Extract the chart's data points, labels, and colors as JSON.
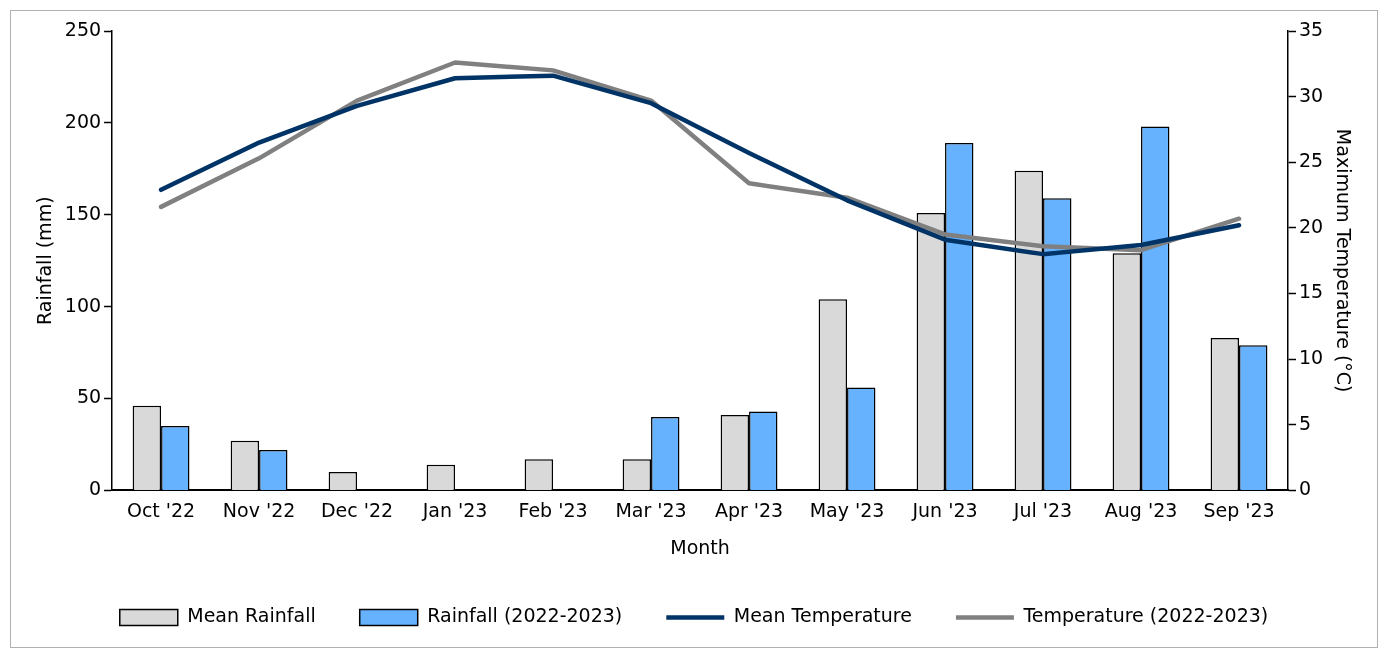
{
  "chart_data": {
    "type": "bar",
    "xlabel": "Month",
    "ylabel": "Rainfall (mm)",
    "y2label": "Maximum Temperature (°C)",
    "categories": [
      "Oct '22",
      "Nov '22",
      "Dec '22",
      "Jan '23",
      "Feb '23",
      "Mar '23",
      "Apr '23",
      "May '23",
      "Jun '23",
      "Jul '23",
      "Aug '23",
      "Sep '23"
    ],
    "series": [
      {
        "name": "Mean Rainfall",
        "type": "bar",
        "color": "#d9d9d9",
        "values": [
          46,
          27,
          10,
          14,
          17,
          17,
          41,
          104,
          151,
          174,
          129,
          83
        ]
      },
      {
        "name": "Rainfall (2022-2023)",
        "type": "bar",
        "color": "#66b2ff",
        "values": [
          35,
          22,
          0,
          0,
          0,
          40,
          43,
          56,
          189,
          159,
          198,
          79
        ]
      },
      {
        "name": "Mean Temperature",
        "type": "line",
        "axis": "y2",
        "color": "#003366",
        "values": [
          22.9,
          26.5,
          29.3,
          31.4,
          31.6,
          29.5,
          25.7,
          22.1,
          19.1,
          18.0,
          18.7,
          20.2
        ]
      },
      {
        "name": "Temperature (2022-2023)",
        "type": "line",
        "axis": "y2",
        "color": "#808080",
        "values": [
          21.6,
          25.3,
          29.7,
          32.6,
          32.0,
          29.7,
          23.4,
          22.3,
          19.5,
          18.6,
          18.3,
          20.7
        ]
      }
    ],
    "ylim": [
      0,
      250
    ],
    "yticks": [
      0,
      50,
      100,
      150,
      200,
      250
    ],
    "y2lim": [
      0,
      35
    ],
    "y2ticks": [
      0,
      5,
      10,
      15,
      20,
      25,
      30,
      35
    ],
    "grid": false,
    "legend": "bottom",
    "marker": "none",
    "line_style": "solid"
  }
}
